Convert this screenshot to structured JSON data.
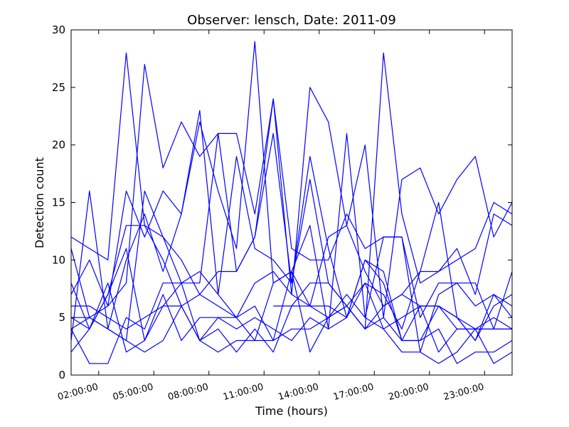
{
  "chart_data": {
    "type": "line",
    "title": "Observer: lensch, Date: 2011-09",
    "xlabel": "Time (hours)",
    "ylabel": "Detection count",
    "x_unit": "hours",
    "xlim": [
      0.5,
      24.5
    ],
    "ylim": [
      0,
      30
    ],
    "yticks": [
      0,
      5,
      10,
      15,
      20,
      25,
      30
    ],
    "xticks": [
      {
        "value": 2,
        "label": "02:00:00"
      },
      {
        "value": 5,
        "label": "05:00:00"
      },
      {
        "value": 8,
        "label": "08:00:00"
      },
      {
        "value": 11,
        "label": "11:00:00"
      },
      {
        "value": 14,
        "label": "14:00:00"
      },
      {
        "value": 17,
        "label": "17:00:00"
      },
      {
        "value": 20,
        "label": "20:00:00"
      },
      {
        "value": 23,
        "label": "23:00:00"
      }
    ],
    "grid": false,
    "legend": "none",
    "line_color": "#0000ff",
    "series": [
      {
        "x": [
          0.5,
          1.5,
          2.5,
          3.5,
          4.5,
          5.5,
          6.5,
          7.5,
          8.5,
          9.5,
          10.5,
          11.5,
          12.5,
          13.5,
          14.5,
          15.5,
          16.5,
          17.5,
          18.5,
          19.5,
          20.5,
          21.5,
          22.5,
          23.5,
          24.5
        ],
        "y": [
          4,
          5,
          6,
          8,
          27,
          18,
          22,
          19,
          21,
          21,
          14,
          24,
          7,
          25,
          22,
          13,
          20,
          5,
          17,
          18,
          14,
          17,
          19,
          12,
          15
        ]
      },
      {
        "x": [
          0.5,
          1.5,
          2.5,
          3.5,
          4.5,
          5.5,
          6.5,
          7.5,
          8.5,
          9.5,
          10.5,
          11.5,
          12.5,
          13.5,
          14.5,
          15.5,
          16.5,
          17.5,
          18.5,
          19.5,
          20.5,
          21.5,
          22.5,
          23.5,
          24.5
        ],
        "y": [
          12,
          11,
          10,
          28,
          13,
          12,
          10,
          7,
          9,
          9,
          12,
          21,
          8,
          17,
          8,
          6,
          4,
          28,
          14,
          8,
          9,
          10,
          11,
          15,
          14
        ]
      },
      {
        "x": [
          0.5,
          1.5,
          2.5,
          3.5,
          4.5,
          5.5,
          6.5,
          7.5,
          8.5,
          9.5,
          10.5,
          11.5,
          12.5,
          13.5,
          14.5,
          15.5,
          16.5,
          17.5,
          18.5,
          19.5,
          20.5,
          21.5,
          22.5,
          23.5,
          24.5
        ],
        "y": [
          11,
          5,
          4,
          10,
          14,
          9,
          14,
          23,
          7,
          19,
          11,
          10,
          8,
          19,
          11,
          5,
          8,
          7,
          4,
          9,
          9,
          11,
          7,
          14,
          13
        ]
      },
      {
        "x": [
          0.5,
          1.5,
          2.5,
          3.5,
          4.5,
          5.5,
          6.5,
          7.5,
          8.5,
          9.5,
          10.5,
          11.5,
          12.5,
          13.5,
          14.5,
          15.5,
          16.5,
          17.5,
          18.5,
          19.5,
          20.5,
          21.5,
          22.5,
          23.5,
          24.5
        ],
        "y": [
          7,
          10,
          6,
          16,
          12,
          16,
          14,
          22,
          16,
          11,
          29,
          8,
          9,
          13,
          4,
          21,
          5,
          12,
          12,
          5,
          8,
          8,
          6,
          7,
          6
        ]
      },
      {
        "x": [
          0.5,
          1.5,
          2.5,
          3.5,
          4.5,
          5.5,
          6.5,
          7.5,
          8.5,
          9.5,
          10.5,
          11.5,
          12.5,
          13.5,
          14.5,
          15.5,
          16.5,
          17.5,
          18.5,
          19.5,
          20.5,
          21.5,
          22.5,
          23.5,
          24.5
        ],
        "y": [
          3,
          16,
          4,
          3,
          16,
          12,
          8,
          8,
          21,
          9,
          12,
          24,
          11,
          10,
          10,
          14,
          11,
          12,
          12,
          2,
          7,
          8,
          8,
          4,
          9
        ]
      },
      {
        "x": [
          0.5,
          1.5,
          2.5,
          3.5,
          4.5,
          5.5,
          6.5,
          7.5,
          8.5,
          9.5,
          10.5,
          11.5,
          12.5,
          13.5,
          14.5,
          15.5,
          16.5,
          17.5,
          18.5,
          19.5,
          20.5,
          21.5,
          22.5,
          23.5,
          24.5
        ],
        "y": [
          6,
          6,
          5,
          4,
          5,
          6,
          8,
          9,
          7,
          5,
          8,
          9,
          7,
          6,
          12,
          13,
          9,
          6,
          7,
          9,
          15,
          5,
          3,
          6,
          7
        ]
      },
      {
        "x": [
          0.5,
          1.5,
          2.5,
          3.5,
          4.5,
          5.5,
          6.5,
          7.5,
          8.5,
          9.5,
          10.5,
          11.5,
          12.5,
          13.5,
          14.5,
          15.5,
          16.5,
          17.5,
          18.5,
          19.5,
          20.5,
          21.5,
          22.5,
          23.5,
          24.5
        ],
        "y": [
          5,
          4,
          7,
          13,
          13,
          10,
          6,
          7,
          6,
          5,
          3,
          8,
          9,
          6,
          6,
          5,
          10,
          9,
          3,
          3,
          6,
          5,
          3,
          7,
          5
        ]
      },
      {
        "x": [
          0.5,
          1.5,
          2.5,
          3.5,
          4.5,
          5.5,
          6.5,
          7.5,
          8.5,
          9.5,
          10.5,
          11.5,
          12.5,
          13.5,
          14.5,
          15.5,
          16.5,
          17.5,
          18.5,
          19.5,
          20.5,
          21.5,
          22.5,
          23.5,
          24.5
        ],
        "y": [
          2,
          4,
          8,
          2,
          3,
          7,
          3,
          5,
          5,
          4,
          5,
          4,
          3,
          5,
          4,
          5,
          10,
          8,
          3,
          3,
          4,
          1,
          2,
          2,
          3
        ]
      },
      {
        "x": [
          0.5,
          1.5,
          2.5,
          3.5,
          4.5,
          5.5,
          6.5,
          7.5,
          8.5,
          9.5,
          10.5,
          11.5,
          12.5,
          13.5,
          14.5,
          15.5,
          16.5,
          17.5,
          18.5,
          19.5,
          20.5,
          21.5,
          22.5,
          23.5,
          24.5
        ],
        "y": [
          4,
          1,
          1,
          5,
          4,
          8,
          8,
          3,
          4,
          2,
          4,
          2,
          6,
          8,
          8,
          6,
          8,
          4,
          2,
          2,
          1,
          2,
          4,
          1,
          2
        ]
      },
      {
        "x": [
          0.5,
          1.5,
          2.5,
          3.5,
          4.5,
          5.5,
          6.5,
          7.5,
          8.5,
          9.5,
          10.5,
          11.5,
          12.5,
          13.5,
          14.5,
          15.5,
          16.5,
          17.5,
          18.5,
          19.5,
          20.5,
          21.5,
          22.5,
          23.5,
          24.5
        ],
        "y": [
          8,
          4,
          7,
          11,
          3,
          6,
          6,
          3,
          5,
          5,
          6,
          3,
          9,
          2,
          5,
          7,
          5,
          4,
          5,
          6,
          6,
          4,
          4,
          4,
          4
        ]
      },
      {
        "x": [
          0.5,
          1.5,
          2.5,
          3.5,
          4.5,
          5.5,
          6.5,
          7.5,
          8.5,
          9.5,
          10.5,
          11.5,
          12.5,
          13.5,
          14.5,
          15.5,
          16.5,
          17.5,
          18.5,
          19.5,
          20.5,
          21.5,
          22.5,
          23.5,
          24.5
        ],
        "y": [
          5,
          5,
          4,
          3,
          2,
          3,
          6,
          3,
          2,
          3,
          3,
          3,
          4,
          4,
          5,
          6,
          4,
          5,
          3,
          6,
          2,
          4,
          4,
          5,
          4
        ]
      },
      {
        "x": [
          11.5,
          12.5,
          13.5,
          14.5,
          15.5,
          16.5,
          17.5,
          18.5,
          19.5,
          20.5,
          21.5,
          22.5,
          23.5,
          24.5
        ],
        "y": [
          6,
          6,
          6,
          5,
          6,
          4,
          6,
          7,
          6,
          6,
          5,
          4,
          4,
          4
        ]
      }
    ]
  }
}
